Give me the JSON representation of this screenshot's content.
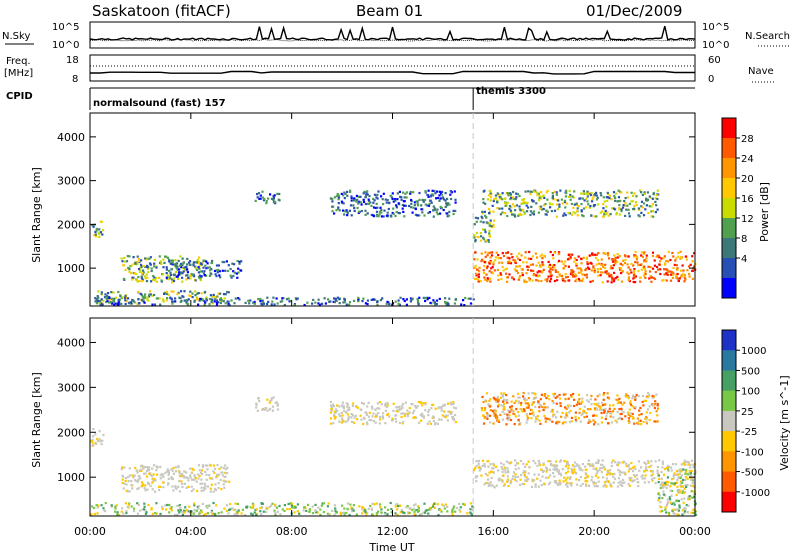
{
  "header": {
    "title": "Saskatoon (fitACF)",
    "beam": "Beam 01",
    "date": "01/Dec/2009"
  },
  "top_panel": {
    "left_label": "N.Sky",
    "right_label": "N.Search",
    "left_ticks": [
      "10^5",
      "10^0"
    ],
    "right_ticks": [
      "10^5",
      "10^0"
    ]
  },
  "freq_panel": {
    "left_label_1": "Freq.",
    "left_label_2": "[MHz]",
    "right_label": "Nave",
    "left_ticks": [
      "18",
      "8"
    ],
    "right_ticks": [
      "60",
      "0"
    ]
  },
  "cpid": {
    "label": "CPID",
    "mode_1": "normalsound (fast) 157",
    "mode_2": "themis 3300"
  },
  "axes": {
    "y_label": "Slant Range [km]",
    "y_ticks": [
      "4000",
      "3000",
      "2000",
      "1000"
    ],
    "x_label": "Time UT",
    "x_ticks": [
      "00:00",
      "04:00",
      "08:00",
      "12:00",
      "16:00",
      "20:00",
      "00:00"
    ]
  },
  "power_scale": {
    "label": "Power [dB]",
    "ticks": [
      "28",
      "24",
      "20",
      "16",
      "12",
      "8",
      "4"
    ],
    "colors": [
      "#ff0000",
      "#ff5a00",
      "#ff9600",
      "#ffc800",
      "#c8dc00",
      "#50a050",
      "#3c7878",
      "#2850b4",
      "#0000ff"
    ]
  },
  "velocity_scale": {
    "label": "Velocity [m s^-1]",
    "ticks": [
      "1000",
      "500",
      "100",
      "25",
      "-25",
      "-100",
      "-500",
      "-1000"
    ],
    "colors": [
      "#1e32c8",
      "#2878a0",
      "#46a064",
      "#78c846",
      "#c8c8c0",
      "#ffc800",
      "#ff9600",
      "#ff5a00",
      "#ff0000"
    ]
  },
  "chart_data": {
    "type": "heatmap",
    "x_range_hours": [
      0,
      24
    ],
    "y_range_km": [
      180,
      4500
    ],
    "mode_change_hour": 15.2,
    "power_regions": [
      {
        "t0": 0.0,
        "t1": 0.5,
        "r0": 1700,
        "r1": 2100,
        "level": "mid"
      },
      {
        "t0": 0.2,
        "t1": 5.5,
        "r0": 200,
        "r1": 500,
        "level": "mid"
      },
      {
        "t0": 1.2,
        "t1": 4.5,
        "r0": 700,
        "r1": 1300,
        "level": "mid"
      },
      {
        "t0": 3.0,
        "t1": 6.0,
        "r0": 800,
        "r1": 1200,
        "level": "low"
      },
      {
        "t0": 0.0,
        "t1": 15.2,
        "r0": 180,
        "r1": 350,
        "level": "low"
      },
      {
        "t0": 6.5,
        "t1": 7.5,
        "r0": 2500,
        "r1": 2800,
        "level": "low"
      },
      {
        "t0": 9.5,
        "t1": 14.5,
        "r0": 2200,
        "r1": 2800,
        "level": "low"
      },
      {
        "t0": 15.2,
        "t1": 24.0,
        "r0": 700,
        "r1": 1400,
        "level": "high"
      },
      {
        "t0": 15.5,
        "t1": 22.5,
        "r0": 2200,
        "r1": 2800,
        "level": "mid"
      },
      {
        "t0": 15.2,
        "t1": 16.0,
        "r0": 1600,
        "r1": 2200,
        "level": "mid"
      }
    ],
    "velocity_regions": [
      {
        "t0": 0.0,
        "t1": 0.5,
        "r0": 1700,
        "r1": 2100,
        "level": "zero"
      },
      {
        "t0": 1.2,
        "t1": 5.5,
        "r0": 700,
        "r1": 1300,
        "level": "zero"
      },
      {
        "t0": 6.5,
        "t1": 7.5,
        "r0": 2500,
        "r1": 2800,
        "level": "zero"
      },
      {
        "t0": 9.5,
        "t1": 14.5,
        "r0": 2200,
        "r1": 2700,
        "level": "zero"
      },
      {
        "t0": 0.0,
        "t1": 15.2,
        "r0": 180,
        "r1": 450,
        "level": "pos"
      },
      {
        "t0": 15.2,
        "t1": 24.0,
        "r0": 800,
        "r1": 1400,
        "level": "zero"
      },
      {
        "t0": 15.5,
        "t1": 22.5,
        "r0": 2200,
        "r1": 2900,
        "level": "neg"
      },
      {
        "t0": 22.5,
        "t1": 24.0,
        "r0": 180,
        "r1": 1200,
        "level": "pos"
      }
    ]
  }
}
